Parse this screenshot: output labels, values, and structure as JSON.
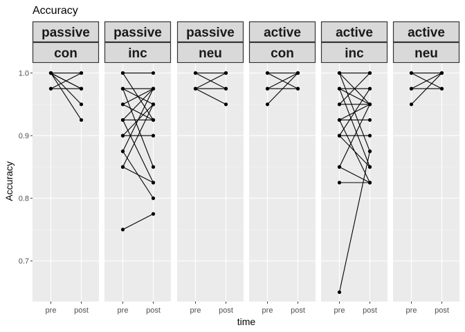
{
  "chart_data": {
    "type": "line",
    "title": "Accuracy",
    "xlabel": "time",
    "ylabel": "Accuracy",
    "x_categories": [
      "pre",
      "post"
    ],
    "ylim": [
      0.635,
      1.015
    ],
    "yticks": [
      0.7,
      0.8,
      0.9,
      1.0
    ],
    "ytick_labels": [
      "0.7",
      "0.8",
      "0.9",
      "1.0"
    ],
    "grid": true,
    "legend": "none",
    "colors": {
      "panel_bg": "#ebebeb",
      "grid_major": "#ffffff",
      "grid_minor": "#f5f5f5",
      "strip_bg": "#d9d9d9",
      "strip_border": "#333333",
      "line": "#000000",
      "point": "#000000"
    },
    "panels": [
      {
        "strip": [
          "passive",
          "con"
        ],
        "pairs": [
          [
            1.0,
            1.0
          ],
          [
            1.0,
            0.975
          ],
          [
            1.0,
            0.95
          ],
          [
            1.0,
            0.925
          ],
          [
            0.975,
            1.0
          ],
          [
            0.975,
            0.975
          ],
          [
            1.0,
            0.975
          ]
        ]
      },
      {
        "strip": [
          "passive",
          "inc"
        ],
        "pairs": [
          [
            1.0,
            1.0
          ],
          [
            1.0,
            0.925
          ],
          [
            0.975,
            0.975
          ],
          [
            0.975,
            0.95
          ],
          [
            0.975,
            0.85
          ],
          [
            0.95,
            0.975
          ],
          [
            0.95,
            0.925
          ],
          [
            0.925,
            0.975
          ],
          [
            0.925,
            0.925
          ],
          [
            0.925,
            0.825
          ],
          [
            0.9,
            0.95
          ],
          [
            0.9,
            0.9
          ],
          [
            0.875,
            0.975
          ],
          [
            0.875,
            0.8
          ],
          [
            0.85,
            0.95
          ],
          [
            0.85,
            0.825
          ],
          [
            0.75,
            0.775
          ]
        ]
      },
      {
        "strip": [
          "passive",
          "neu"
        ],
        "pairs": [
          [
            1.0,
            1.0
          ],
          [
            1.0,
            0.975
          ],
          [
            0.975,
            1.0
          ],
          [
            0.975,
            0.975
          ],
          [
            0.975,
            0.95
          ]
        ]
      },
      {
        "strip": [
          "active",
          "con"
        ],
        "pairs": [
          [
            1.0,
            1.0
          ],
          [
            1.0,
            0.975
          ],
          [
            0.975,
            1.0
          ],
          [
            0.975,
            0.975
          ],
          [
            0.95,
            1.0
          ]
        ]
      },
      {
        "strip": [
          "active",
          "inc"
        ],
        "pairs": [
          [
            1.0,
            1.0
          ],
          [
            1.0,
            0.95
          ],
          [
            1.0,
            0.875
          ],
          [
            0.975,
            0.975
          ],
          [
            0.975,
            0.95
          ],
          [
            0.975,
            0.85
          ],
          [
            0.95,
            1.0
          ],
          [
            0.95,
            0.95
          ],
          [
            0.925,
            0.95
          ],
          [
            0.925,
            0.925
          ],
          [
            0.925,
            0.825
          ],
          [
            0.9,
            0.975
          ],
          [
            0.9,
            0.9
          ],
          [
            0.9,
            0.85
          ],
          [
            0.85,
            0.95
          ],
          [
            0.85,
            0.825
          ],
          [
            0.825,
            0.825
          ],
          [
            0.65,
            0.875
          ]
        ]
      },
      {
        "strip": [
          "active",
          "neu"
        ],
        "pairs": [
          [
            1.0,
            1.0
          ],
          [
            1.0,
            0.975
          ],
          [
            0.975,
            1.0
          ],
          [
            0.975,
            0.975
          ],
          [
            0.95,
            1.0
          ]
        ]
      }
    ]
  }
}
